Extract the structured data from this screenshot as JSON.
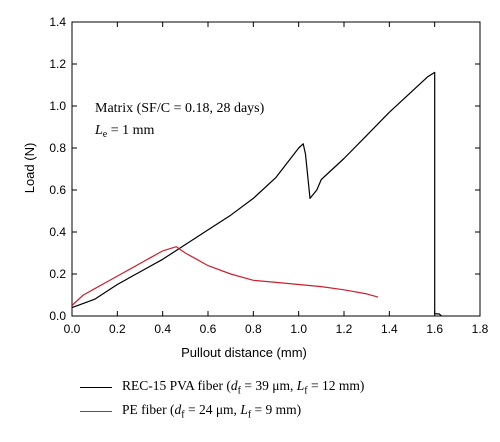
{
  "chart_data": {
    "type": "line",
    "xlabel": "Pullout distance (mm)",
    "ylabel": "Load (N)",
    "xlim": [
      0,
      1.8
    ],
    "ylim": [
      0,
      1.4
    ],
    "xticks": [
      "0.0",
      "0.2",
      "0.4",
      "0.6",
      "0.8",
      "1.0",
      "1.2",
      "1.4",
      "1.6",
      "1.8"
    ],
    "yticks": [
      "0.0",
      "0.2",
      "0.4",
      "0.6",
      "0.8",
      "1.0",
      "1.2",
      "1.4"
    ],
    "grid": false,
    "legend_position": "bottom",
    "annotations": {
      "line1": "Matrix (SF/C = 0.18, 28 days)",
      "line2_symbol": "L",
      "line2_subscript": "e",
      "line2_rest": " = 1 mm"
    },
    "series": [
      {
        "color": "#000000",
        "legend_prefix": "REC-15 PVA fiber (",
        "legend_d_symbol": "d",
        "legend_d_sub": "f",
        "legend_d_value": " = 39 μm, ",
        "legend_l_symbol": "L",
        "legend_l_sub": "f",
        "legend_l_value": " = 12 mm)",
        "points": [
          [
            0.0,
            0.04
          ],
          [
            0.05,
            0.06
          ],
          [
            0.1,
            0.08
          ],
          [
            0.2,
            0.15
          ],
          [
            0.3,
            0.21
          ],
          [
            0.4,
            0.27
          ],
          [
            0.5,
            0.34
          ],
          [
            0.6,
            0.41
          ],
          [
            0.7,
            0.48
          ],
          [
            0.8,
            0.56
          ],
          [
            0.9,
            0.66
          ],
          [
            1.0,
            0.8
          ],
          [
            1.02,
            0.82
          ],
          [
            1.03,
            0.77
          ],
          [
            1.05,
            0.56
          ],
          [
            1.08,
            0.6
          ],
          [
            1.1,
            0.65
          ],
          [
            1.2,
            0.75
          ],
          [
            1.3,
            0.86
          ],
          [
            1.4,
            0.97
          ],
          [
            1.5,
            1.07
          ],
          [
            1.57,
            1.14
          ],
          [
            1.6,
            1.16
          ],
          [
            1.6,
            0.01
          ],
          [
            1.62,
            0.01
          ],
          [
            1.63,
            0.0
          ]
        ]
      },
      {
        "color": "#cc1f2f",
        "legend_prefix": "PE fiber (",
        "legend_d_symbol": "d",
        "legend_d_sub": "f",
        "legend_d_value": " = 24 μm, ",
        "legend_l_symbol": "L",
        "legend_l_sub": "f",
        "legend_l_value": " = 9 mm)",
        "points": [
          [
            0.0,
            0.05
          ],
          [
            0.05,
            0.1
          ],
          [
            0.1,
            0.13
          ],
          [
            0.15,
            0.16
          ],
          [
            0.2,
            0.19
          ],
          [
            0.25,
            0.22
          ],
          [
            0.3,
            0.25
          ],
          [
            0.35,
            0.28
          ],
          [
            0.4,
            0.31
          ],
          [
            0.43,
            0.32
          ],
          [
            0.46,
            0.33
          ],
          [
            0.5,
            0.3
          ],
          [
            0.55,
            0.27
          ],
          [
            0.6,
            0.24
          ],
          [
            0.7,
            0.2
          ],
          [
            0.8,
            0.17
          ],
          [
            0.9,
            0.16
          ],
          [
            1.0,
            0.15
          ],
          [
            1.1,
            0.14
          ],
          [
            1.2,
            0.125
          ],
          [
            1.3,
            0.105
          ],
          [
            1.35,
            0.09
          ]
        ]
      }
    ]
  }
}
